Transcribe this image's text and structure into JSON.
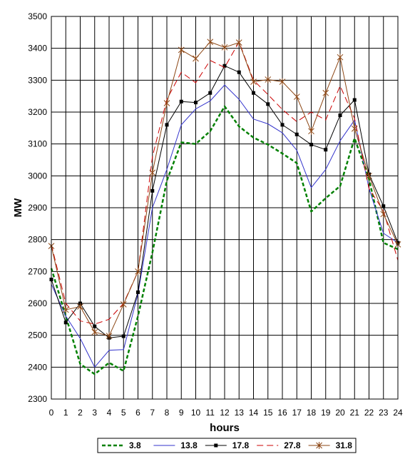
{
  "chart_data": {
    "type": "line",
    "title": "",
    "xlabel": "hours",
    "ylabel": "MW",
    "xlim": [
      0,
      24
    ],
    "ylim": [
      2300,
      3500
    ],
    "x_ticks": [
      "0",
      "1",
      "2",
      "3",
      "4",
      "5",
      "6",
      "7",
      "8",
      "9",
      "10",
      "11",
      "12",
      "13",
      "14",
      "15",
      "16",
      "17",
      "18",
      "19",
      "20",
      "21",
      "22",
      "23",
      "24"
    ],
    "y_ticks": [
      "2300",
      "2400",
      "2500",
      "2600",
      "2700",
      "2800",
      "2900",
      "3000",
      "3100",
      "3200",
      "3300",
      "3400",
      "3500"
    ],
    "grid": true,
    "legend_position": "bottom",
    "x": [
      0,
      1,
      2,
      3,
      4,
      5,
      6,
      7,
      8,
      9,
      10,
      11,
      12,
      13,
      14,
      15,
      16,
      17,
      18,
      19,
      20,
      21,
      22,
      23,
      24
    ],
    "series": [
      {
        "name": "3.8",
        "color": "#008000",
        "dash": "5,3",
        "width": 2.5,
        "marker": "none",
        "values": [
          2710,
          2560,
          2410,
          2378,
          2414,
          2388,
          2560,
          2760,
          2985,
          3105,
          3100,
          3140,
          3218,
          3155,
          3120,
          3098,
          3070,
          3040,
          2888,
          2930,
          2968,
          3118,
          2990,
          2790,
          2770
        ]
      },
      {
        "name": "13.8",
        "color": "#3333cc",
        "dash": "",
        "width": 1,
        "marker": "none",
        "values": [
          2660,
          2560,
          2490,
          2400,
          2453,
          2455,
          2630,
          2900,
          3020,
          3160,
          3210,
          3235,
          3285,
          3240,
          3178,
          3163,
          3135,
          3080,
          2963,
          3020,
          3110,
          3175,
          2960,
          2820,
          2790
        ]
      },
      {
        "name": "17.8",
        "color": "#000000",
        "dash": "",
        "width": 1,
        "marker": "square",
        "values": [
          2675,
          2540,
          2600,
          2528,
          2492,
          2497,
          2635,
          2953,
          3160,
          3233,
          3230,
          3260,
          3345,
          3325,
          3260,
          3225,
          3160,
          3130,
          3098,
          3082,
          3190,
          3238,
          3005,
          2905,
          2790
        ]
      },
      {
        "name": "27.8",
        "color": "#cc0000",
        "dash": "9,5",
        "width": 1,
        "marker": "none",
        "values": [
          2785,
          2600,
          2545,
          2535,
          2550,
          2600,
          2700,
          3060,
          3240,
          3325,
          3292,
          3362,
          3340,
          3420,
          3300,
          3255,
          3208,
          3170,
          3200,
          3175,
          3282,
          3180,
          2960,
          2890,
          2735
        ]
      },
      {
        "name": "31.8",
        "color": "#8b4513",
        "dash": "",
        "width": 1,
        "marker": "star",
        "values": [
          2780,
          2580,
          2590,
          2510,
          2498,
          2597,
          2700,
          3010,
          3228,
          3395,
          3368,
          3420,
          3403,
          3418,
          3295,
          3302,
          3295,
          3248,
          3140,
          3260,
          3372,
          3148,
          3000,
          2880,
          2785
        ]
      }
    ]
  }
}
